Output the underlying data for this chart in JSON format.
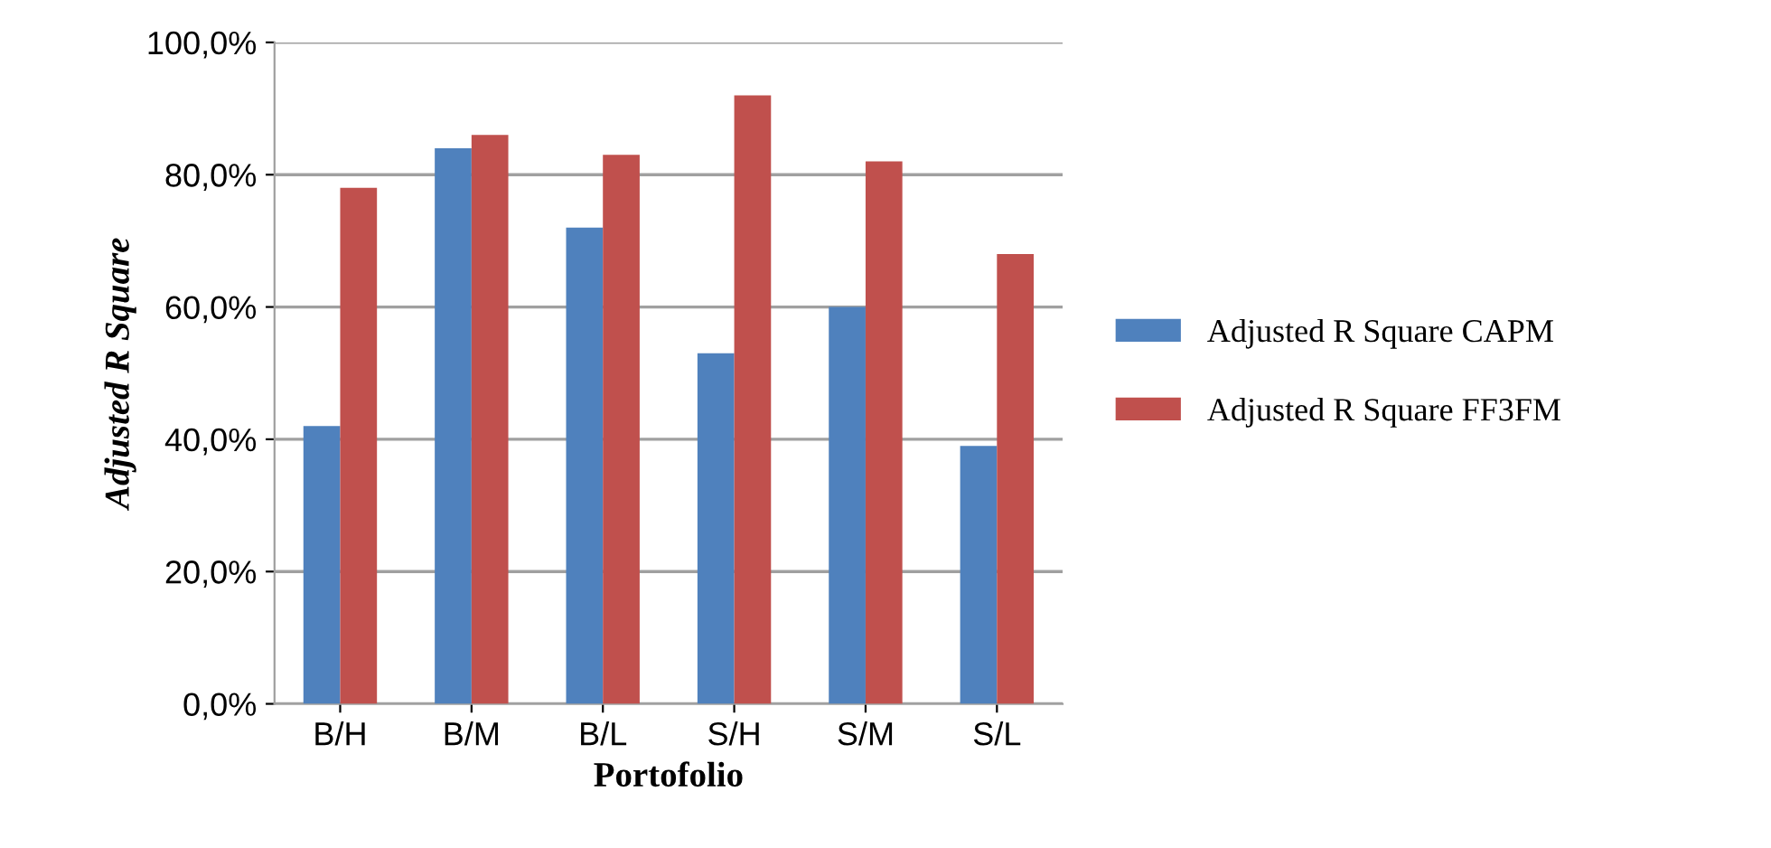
{
  "chart_data": {
    "type": "bar",
    "xlabel": "Portofolio",
    "ylabel": "Adjusted R Square",
    "categories": [
      "B/H",
      "B/M",
      "B/L",
      "S/H",
      "S/M",
      "S/L"
    ],
    "series": [
      {
        "name": "Adjusted R Square CAPM",
        "color": "#4f81bd",
        "values": [
          42,
          84,
          72,
          53,
          60,
          39
        ]
      },
      {
        "name": "Adjusted R Square FF3FM",
        "color": "#c0504d",
        "values": [
          78,
          86,
          83,
          92,
          82,
          68
        ]
      }
    ],
    "ylim": [
      0,
      100
    ],
    "yticks": [
      {
        "value": 0,
        "label": "0,0%"
      },
      {
        "value": 20,
        "label": "20,0%"
      },
      {
        "value": 40,
        "label": "40,0%"
      },
      {
        "value": 60,
        "label": "60,0%"
      },
      {
        "value": 80,
        "label": "80,0%"
      },
      {
        "value": 100,
        "label": "100,0%"
      }
    ],
    "grid": "y",
    "legend": "right"
  }
}
